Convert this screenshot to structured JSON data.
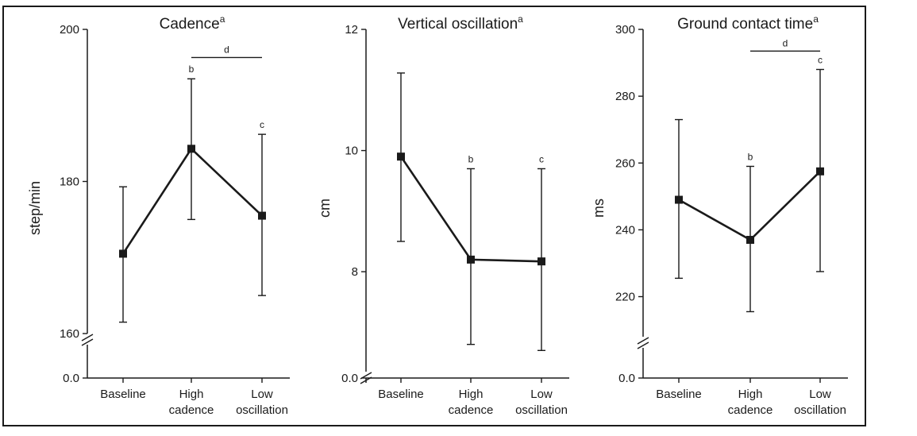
{
  "chart_data": [
    {
      "type": "line",
      "title": "Cadence",
      "title_sup": "a",
      "ylabel": "step/min",
      "categories": [
        [
          "Baseline"
        ],
        [
          "High",
          "cadence"
        ],
        [
          "Low",
          "oscillation"
        ]
      ],
      "values": [
        170.5,
        184.3,
        175.5
      ],
      "error_low": [
        161.5,
        175.0,
        165.0
      ],
      "error_high": [
        179.3,
        193.5,
        186.2
      ],
      "ylim": [
        160,
        200
      ],
      "yticks": [
        "160",
        "180",
        "200"
      ],
      "axis_zero_label": "0.0",
      "axis_break": true,
      "annotations": [
        {
          "text": "b",
          "category": 1
        },
        {
          "text": "c",
          "category": 2
        }
      ],
      "brackets": [
        {
          "text": "d",
          "from": 1,
          "to": 2,
          "y": 196.3
        }
      ]
    },
    {
      "type": "line",
      "title": "Vertical oscillation",
      "title_sup": "a",
      "ylabel": "cm",
      "categories": [
        [
          "Baseline"
        ],
        [
          "High",
          "cadence"
        ],
        [
          "Low",
          "oscillation"
        ]
      ],
      "values": [
        9.9,
        8.2,
        8.17
      ],
      "error_low": [
        8.5,
        6.8,
        6.7
      ],
      "error_high": [
        11.28,
        9.7,
        9.7
      ],
      "ylim": [
        6.35,
        12
      ],
      "yticks": [
        "8",
        "10",
        "12"
      ],
      "axis_zero_label": "0.0",
      "axis_break": true,
      "annotations": [
        {
          "text": "b",
          "category": 1
        },
        {
          "text": "c",
          "category": 2
        }
      ],
      "brackets": []
    },
    {
      "type": "line",
      "title": "Ground contact time",
      "title_sup": "a",
      "ylabel": "ms",
      "categories": [
        [
          "Baseline"
        ],
        [
          "High",
          "cadence"
        ],
        [
          "Low",
          "oscillation"
        ]
      ],
      "values": [
        249,
        237,
        257.5
      ],
      "error_low": [
        225.5,
        215.5,
        227.5
      ],
      "error_high": [
        273,
        259,
        288
      ],
      "ylim": [
        208,
        300
      ],
      "yticks": [
        "220",
        "240",
        "260",
        "280",
        "300"
      ],
      "axis_zero_label": "0.0",
      "axis_break": true,
      "annotations": [
        {
          "text": "b",
          "category": 1
        },
        {
          "text": "c",
          "category": 2
        }
      ],
      "brackets": [
        {
          "text": "d",
          "from": 1,
          "to": 2,
          "y": 293.5
        }
      ]
    }
  ]
}
